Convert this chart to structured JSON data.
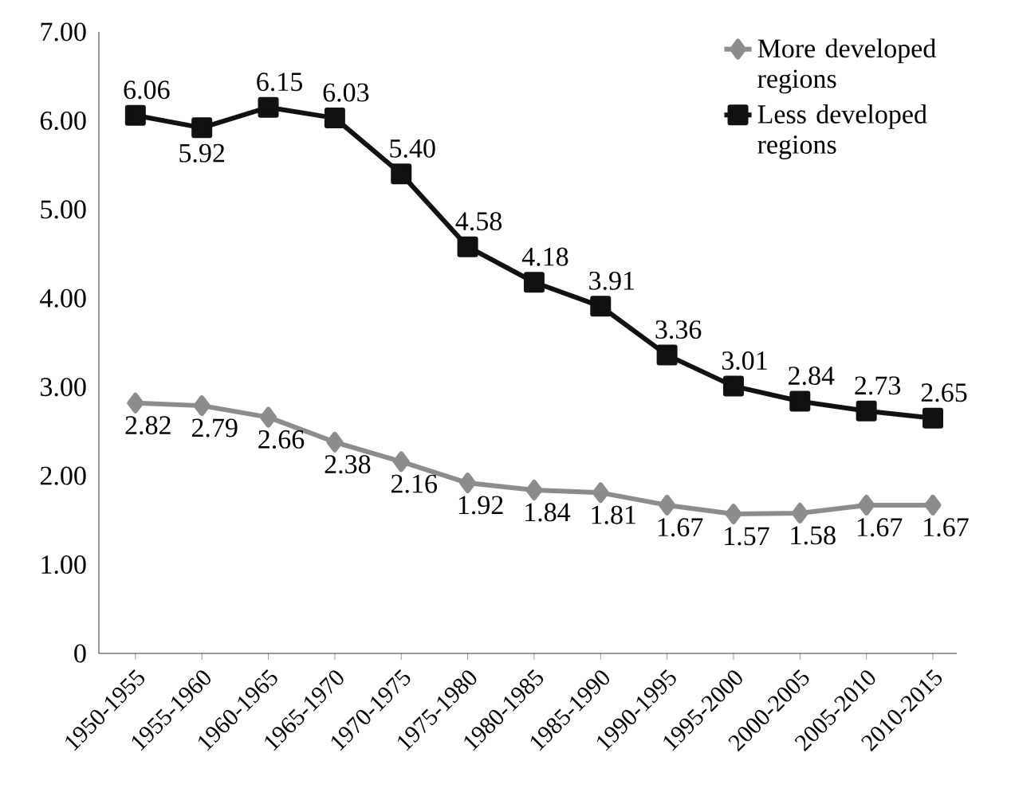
{
  "chart_data": {
    "type": "line",
    "categories": [
      "1950-1955",
      "1955-1960",
      "1960-1965",
      "1965-1970",
      "1970-1975",
      "1975-1980",
      "1980-1985",
      "1985-1990",
      "1990-1995",
      "1995-2000",
      "2000-2005",
      "2005-2010",
      "2010-2015"
    ],
    "series": [
      {
        "name": "More developed regions",
        "color": "#8c8c8c",
        "marker": "diamond",
        "values": [
          2.82,
          2.79,
          2.66,
          2.38,
          2.16,
          1.92,
          1.84,
          1.81,
          1.67,
          1.57,
          1.58,
          1.67,
          1.67
        ],
        "value_labels": [
          "2.82",
          "2.79",
          "2.66",
          "2.38",
          "2.16",
          "1.92",
          "1.84",
          "1.81",
          "1.67",
          "1.57",
          "1.58",
          "1.67",
          "1.67"
        ]
      },
      {
        "name": "Less developed regions",
        "color": "#111111",
        "marker": "square",
        "values": [
          6.06,
          5.92,
          6.15,
          6.03,
          5.4,
          4.58,
          4.18,
          3.91,
          3.36,
          3.01,
          2.84,
          2.73,
          2.65
        ],
        "value_labels": [
          "6.06",
          "5.92",
          "6.15",
          "6.03",
          "5.40",
          "4.58",
          "4.18",
          "3.91",
          "3.36",
          "3.01",
          "2.84",
          "2.73",
          "2.65"
        ]
      }
    ],
    "ylim": [
      0,
      7
    ],
    "yticks": [
      {
        "value": 0,
        "label": "0"
      },
      {
        "value": 1,
        "label": "1.00"
      },
      {
        "value": 2,
        "label": "2.00"
      },
      {
        "value": 3,
        "label": "3.00"
      },
      {
        "value": 4,
        "label": "4.00"
      },
      {
        "value": 5,
        "label": "5.00"
      },
      {
        "value": 6,
        "label": "6.00"
      },
      {
        "value": 7,
        "label": "7.00"
      }
    ],
    "grid": false,
    "legend": "top right",
    "line_style": "solid"
  }
}
